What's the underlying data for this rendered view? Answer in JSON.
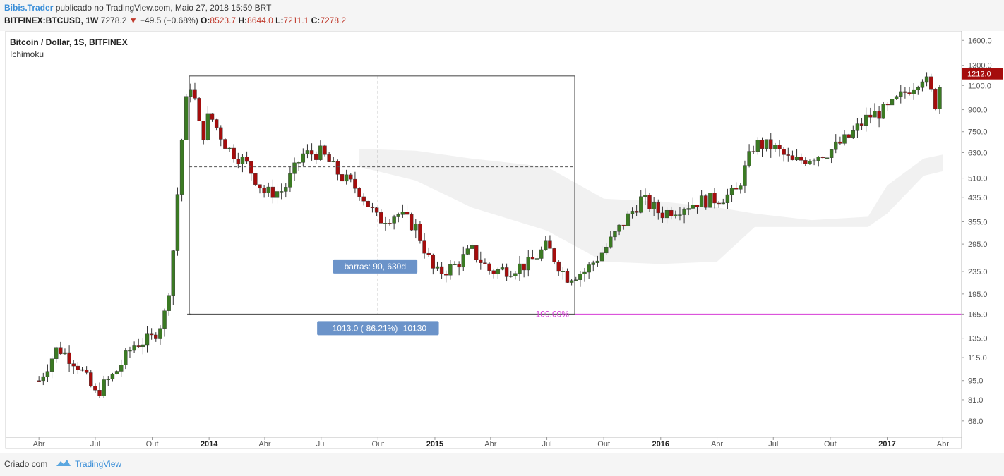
{
  "header": {
    "author": "Bibis.Trader",
    "published": "publicado no TradingView.com, Maio 27, 2018 15:59 BRT",
    "symbol": "BITFINEX:BTCUSD, 1W",
    "last": "7278.2",
    "change": "−49.5 (−0.68%)",
    "o_label": "O:",
    "o_value": "8523.7",
    "h_label": "H:",
    "h_value": "8644.0",
    "l_label": "L:",
    "l_value": "7211.1",
    "c_label": "C:",
    "c_value": "7278.2"
  },
  "footer": {
    "created": "Criado com",
    "brand": "TradingView"
  },
  "chart_data": {
    "type": "candlestick",
    "title": "Bitcoin / Dollar, 1S, BITFINEX",
    "indicator": "Ichimoku",
    "y_scale": "log",
    "ylim": [
      58,
      1650
    ],
    "y_ticks": [
      "1600.0",
      "1300.0",
      "1100.0",
      "900.0",
      "750.0",
      "630.0",
      "510.0",
      "435.0",
      "355.0",
      "295.0",
      "235.0",
      "195.0",
      "165.0",
      "135.0",
      "115.0",
      "95.0",
      "81.0",
      "68.0"
    ],
    "x_ticks": [
      {
        "label": "Abr",
        "date": "2013-04",
        "bold": false
      },
      {
        "label": "Jul",
        "date": "2013-07",
        "bold": false
      },
      {
        "label": "Out",
        "date": "2013-10",
        "bold": false
      },
      {
        "label": "2014",
        "date": "2014-01",
        "bold": true
      },
      {
        "label": "Abr",
        "date": "2014-04",
        "bold": false
      },
      {
        "label": "Jul",
        "date": "2014-07",
        "bold": false
      },
      {
        "label": "Out",
        "date": "2014-10",
        "bold": false
      },
      {
        "label": "2015",
        "date": "2015-01",
        "bold": true
      },
      {
        "label": "Abr",
        "date": "2015-04",
        "bold": false
      },
      {
        "label": "Jul",
        "date": "2015-07",
        "bold": false
      },
      {
        "label": "Out",
        "date": "2015-10",
        "bold": false
      },
      {
        "label": "2016",
        "date": "2016-01",
        "bold": true
      },
      {
        "label": "Abr",
        "date": "2016-04",
        "bold": false
      },
      {
        "label": "Jul",
        "date": "2016-07",
        "bold": false
      },
      {
        "label": "Out",
        "date": "2016-10",
        "bold": false
      },
      {
        "label": "2017",
        "date": "2017-01",
        "bold": true
      },
      {
        "label": "Abr",
        "date": "2017-04",
        "bold": false
      }
    ],
    "close_path": [
      [
        "2013-04",
        95
      ],
      [
        "2013-05",
        125
      ],
      [
        "2013-06",
        110
      ],
      [
        "2013-07",
        85
      ],
      [
        "2013-08",
        100
      ],
      [
        "2013-09",
        128
      ],
      [
        "2013-10",
        135
      ],
      [
        "2013-10-20",
        160
      ],
      [
        "2013-11-01",
        230
      ],
      [
        "2013-11-10",
        420
      ],
      [
        "2013-11-20",
        800
      ],
      [
        "2013-11-30",
        1150
      ],
      [
        "2013-12-08",
        1000
      ],
      [
        "2013-12-20",
        700
      ],
      [
        "2014-01",
        870
      ],
      [
        "2014-02",
        650
      ],
      [
        "2014-03",
        580
      ],
      [
        "2014-04",
        450
      ],
      [
        "2014-05",
        460
      ],
      [
        "2014-06",
        620
      ],
      [
        "2014-07",
        630
      ],
      [
        "2014-08",
        520
      ],
      [
        "2014-09",
        460
      ],
      [
        "2014-10",
        360
      ],
      [
        "2014-11",
        380
      ],
      [
        "2014-12",
        340
      ],
      [
        "2015-01",
        230
      ],
      [
        "2015-02",
        245
      ],
      [
        "2015-03",
        280
      ],
      [
        "2015-04",
        235
      ],
      [
        "2015-05",
        240
      ],
      [
        "2015-06",
        250
      ],
      [
        "2015-07",
        290
      ],
      [
        "2015-08",
        225
      ],
      [
        "2015-09",
        235
      ],
      [
        "2015-10",
        280
      ],
      [
        "2015-11",
        350
      ],
      [
        "2015-12",
        430
      ],
      [
        "2016-01",
        380
      ],
      [
        "2016-02",
        400
      ],
      [
        "2016-03",
        420
      ],
      [
        "2016-04",
        430
      ],
      [
        "2016-05",
        450
      ],
      [
        "2016-06",
        680
      ],
      [
        "2016-07",
        660
      ],
      [
        "2016-08",
        580
      ],
      [
        "2016-09",
        610
      ],
      [
        "2016-10",
        640
      ],
      [
        "2016-11",
        720
      ],
      [
        "2016-12",
        850
      ],
      [
        "2017-01",
        900
      ],
      [
        "2017-02",
        1050
      ],
      [
        "2017-03",
        1200
      ],
      [
        "2017-03-20",
        950
      ],
      [
        "2017-04",
        1212
      ]
    ],
    "cloud_path": [
      [
        "2014-09",
        650,
        560
      ],
      [
        "2014-12",
        640,
        500
      ],
      [
        "2015-03",
        600,
        400
      ],
      [
        "2015-07",
        560,
        330
      ],
      [
        "2015-10",
        430,
        255
      ],
      [
        "2016-01",
        420,
        250
      ],
      [
        "2016-04",
        400,
        255
      ],
      [
        "2016-06",
        380,
        340
      ],
      [
        "2016-09",
        360,
        340
      ],
      [
        "2016-12",
        370,
        340
      ],
      [
        "2017-01",
        480,
        380
      ],
      [
        "2017-03",
        600,
        520
      ],
      [
        "2017-04",
        620,
        540
      ]
    ],
    "measure_box": {
      "x0": "2013-11-30",
      "x1": "2015-08-15",
      "top": 1190,
      "bottom": 165
    },
    "crosshair": {
      "x": "2014-10",
      "y": 560
    },
    "measure_label_bars": "barras: 90, 630d",
    "measure_label_change": "-1013.0 (-86.21%) -10130",
    "fib_label": "100.00%",
    "fib_level": 165,
    "last_price_label": "1212.0",
    "last_price": 1212
  }
}
